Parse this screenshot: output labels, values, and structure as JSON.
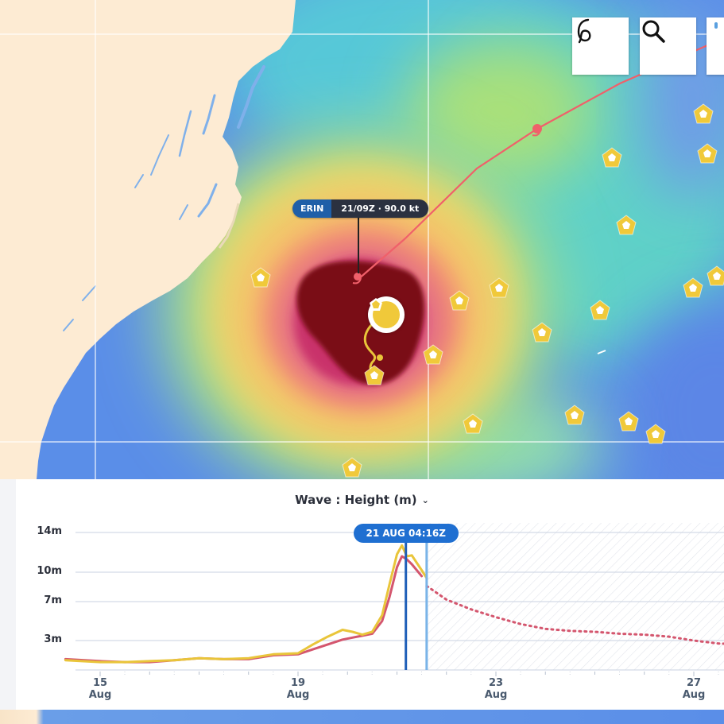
{
  "colors": {
    "land": "#fdebd3",
    "storm_track": "#f0606a",
    "buoy": "#f0c93a",
    "observed_series": "#e9c53a",
    "model_series": "#d4566e",
    "cursor_line": "#1f5fb8",
    "now_line": "#7ab4e8"
  },
  "toolbar": {
    "hurricane_icon": "hurricane-icon",
    "search_icon": "search-icon"
  },
  "storm_label": {
    "name": "ERIN",
    "info": "21/09Z · 90.0 kt"
  },
  "chart": {
    "title": "Wave : Height (m)",
    "dropdown_icon": "chevron-down-icon",
    "time_badge": "21 AUG 04:16Z"
  },
  "chart_data": {
    "type": "line",
    "title": "Wave : Height (m)",
    "ylabel": "Height (m)",
    "y_ticks": [
      "14m",
      "10m",
      "7m",
      "3m"
    ],
    "y_tick_values": [
      14,
      10,
      7,
      3
    ],
    "ylim": [
      0,
      16
    ],
    "xlim": [
      14.3,
      28.0
    ],
    "x_ticks": [
      {
        "day": "15",
        "month": "Aug",
        "value": 15
      },
      {
        "day": "19",
        "month": "Aug",
        "value": 19
      },
      {
        "day": "23",
        "month": "Aug",
        "value": 23
      },
      {
        "day": "27",
        "month": "Aug",
        "value": 27
      }
    ],
    "cursor_time": 21.18,
    "now_time": 21.6,
    "series": [
      {
        "role": "observed",
        "style": "solid",
        "x": [
          14.3,
          15.0,
          15.5,
          16.0,
          16.5,
          17.0,
          17.5,
          18.0,
          18.5,
          19.0,
          19.3,
          19.6,
          19.9,
          20.1,
          20.3,
          20.5,
          20.7,
          20.85,
          21.0,
          21.1,
          21.2,
          21.3,
          21.5,
          21.6
        ],
        "y": [
          1.0,
          0.8,
          0.8,
          0.9,
          1.0,
          1.2,
          1.1,
          1.2,
          1.6,
          1.7,
          2.6,
          3.4,
          4.1,
          3.9,
          3.6,
          3.9,
          5.6,
          8.8,
          11.8,
          12.7,
          11.6,
          11.7,
          10.2,
          9.4
        ]
      },
      {
        "role": "model",
        "style": "solid",
        "x": [
          14.3,
          15.0,
          15.5,
          16.0,
          16.5,
          17.0,
          17.5,
          18.0,
          18.5,
          19.0,
          19.3,
          19.6,
          19.9,
          20.1,
          20.3,
          20.5,
          20.7,
          20.85,
          21.0,
          21.1,
          21.2,
          21.3,
          21.5
        ],
        "y": [
          1.1,
          0.9,
          0.8,
          0.8,
          1.0,
          1.2,
          1.1,
          1.1,
          1.5,
          1.6,
          2.1,
          2.6,
          3.1,
          3.3,
          3.5,
          3.7,
          5.0,
          7.5,
          10.5,
          11.6,
          11.3,
          10.8,
          9.6
        ]
      },
      {
        "role": "forecast",
        "style": "dotted",
        "x": [
          21.6,
          22.0,
          22.5,
          23.0,
          23.5,
          24.0,
          24.5,
          25.0,
          25.5,
          26.0,
          26.5,
          27.0,
          27.5,
          28.0
        ],
        "y": [
          8.6,
          7.2,
          6.2,
          5.4,
          4.7,
          4.2,
          4.0,
          3.9,
          3.7,
          3.6,
          3.4,
          3.0,
          2.7,
          2.6
        ]
      }
    ]
  }
}
